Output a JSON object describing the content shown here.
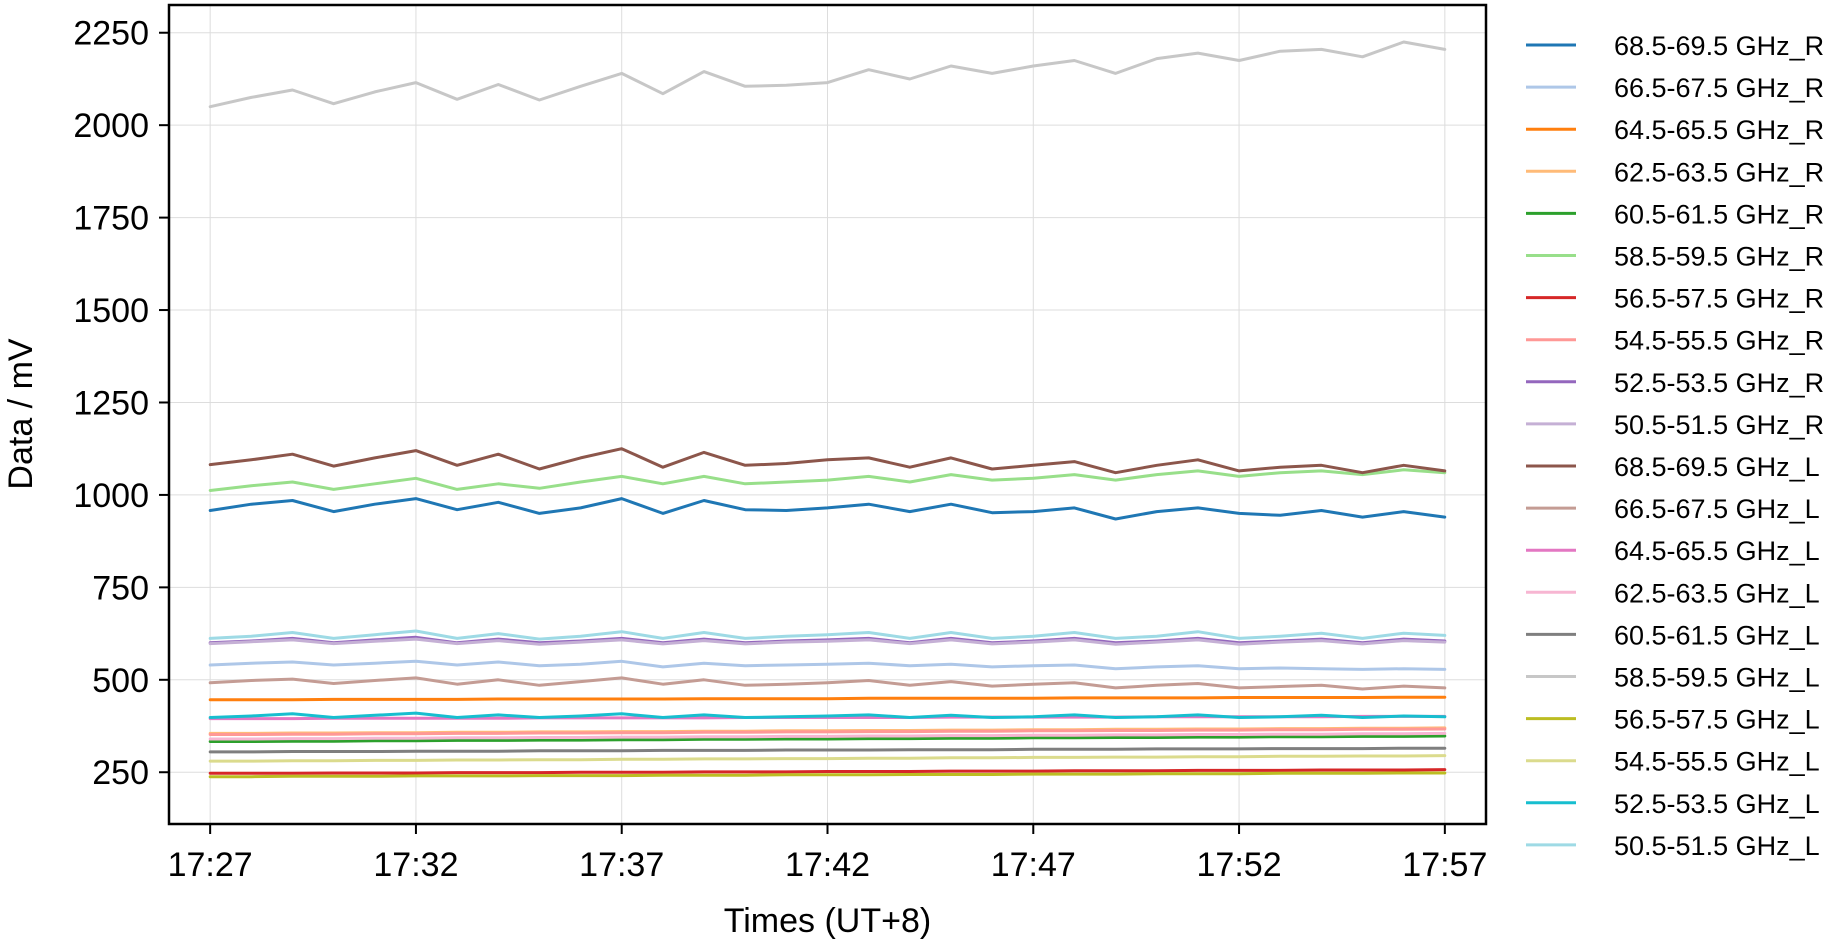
{
  "chart_data": {
    "type": "line",
    "title": "",
    "xlabel": "Times (UT+8)",
    "ylabel": "Data / mV",
    "xlim": [
      "17:26",
      "17:58"
    ],
    "ylim": [
      110,
      2325
    ],
    "x_ticks": [
      "17:27",
      "17:32",
      "17:37",
      "17:42",
      "17:47",
      "17:52",
      "17:57"
    ],
    "y_ticks": [
      250,
      500,
      750,
      1000,
      1250,
      1500,
      1750,
      2000,
      2250
    ],
    "grid": true,
    "legend_position": "outside-right",
    "x": [
      "17:27",
      "17:28",
      "17:29",
      "17:30",
      "17:31",
      "17:32",
      "17:33",
      "17:34",
      "17:35",
      "17:36",
      "17:37",
      "17:38",
      "17:39",
      "17:40",
      "17:41",
      "17:42",
      "17:43",
      "17:44",
      "17:45",
      "17:46",
      "17:47",
      "17:48",
      "17:49",
      "17:50",
      "17:51",
      "17:52",
      "17:53",
      "17:54",
      "17:55",
      "17:56",
      "17:57"
    ],
    "series": [
      {
        "name": "68.5-69.5 GHz_R",
        "color": "#1f77b4",
        "values": [
          958,
          975,
          985,
          955,
          975,
          990,
          960,
          980,
          950,
          965,
          990,
          950,
          985,
          960,
          958,
          965,
          975,
          955,
          975,
          952,
          955,
          965,
          935,
          955,
          965,
          950,
          945,
          958,
          940,
          955,
          940
        ]
      },
      {
        "name": "66.5-67.5 GHz_R",
        "color": "#aec7e8",
        "values": [
          540,
          545,
          548,
          540,
          545,
          550,
          540,
          548,
          538,
          542,
          550,
          535,
          545,
          538,
          540,
          542,
          545,
          538,
          542,
          535,
          538,
          540,
          530,
          535,
          538,
          530,
          532,
          530,
          528,
          530,
          528
        ]
      },
      {
        "name": "64.5-65.5 GHz_R",
        "color": "#ff7f0e",
        "values": [
          446,
          446,
          446,
          447,
          447,
          447,
          447,
          448,
          448,
          448,
          448,
          448,
          449,
          449,
          449,
          449,
          450,
          450,
          450,
          450,
          450,
          451,
          451,
          451,
          451,
          452,
          452,
          452,
          452,
          453,
          453
        ]
      },
      {
        "name": "62.5-63.5 GHz_R",
        "color": "#ffbb78",
        "values": [
          355,
          355,
          356,
          356,
          357,
          357,
          358,
          358,
          359,
          359,
          360,
          360,
          361,
          361,
          362,
          362,
          363,
          363,
          364,
          364,
          365,
          365,
          366,
          366,
          367,
          367,
          368,
          368,
          369,
          369,
          370
        ]
      },
      {
        "name": "60.5-61.5 GHz_R",
        "color": "#2ca02c",
        "values": [
          333,
          333,
          334,
          334,
          335,
          335,
          336,
          336,
          337,
          337,
          338,
          338,
          339,
          339,
          340,
          340,
          341,
          341,
          342,
          342,
          343,
          343,
          344,
          344,
          345,
          345,
          346,
          346,
          347,
          347,
          348
        ]
      },
      {
        "name": "58.5-59.5 GHz_R",
        "color": "#98df8a",
        "values": [
          1012,
          1025,
          1035,
          1015,
          1030,
          1045,
          1015,
          1030,
          1018,
          1035,
          1050,
          1030,
          1050,
          1030,
          1035,
          1040,
          1050,
          1035,
          1055,
          1040,
          1045,
          1055,
          1040,
          1055,
          1065,
          1050,
          1060,
          1065,
          1055,
          1068,
          1060
        ]
      },
      {
        "name": "56.5-57.5 GHz_R",
        "color": "#d62728",
        "values": [
          247,
          247,
          247,
          248,
          248,
          248,
          249,
          249,
          249,
          250,
          250,
          250,
          251,
          251,
          251,
          252,
          252,
          252,
          253,
          253,
          253,
          254,
          254,
          254,
          255,
          255,
          255,
          256,
          256,
          256,
          257
        ]
      },
      {
        "name": "54.5-55.5 GHz_R",
        "color": "#ff9896",
        "values": [
          352,
          352,
          353,
          353,
          354,
          354,
          355,
          355,
          356,
          356,
          357,
          357,
          358,
          358,
          359,
          359,
          360,
          360,
          361,
          361,
          362,
          362,
          363,
          363,
          364,
          364,
          365,
          365,
          366,
          366,
          367
        ]
      },
      {
        "name": "52.5-53.5 GHz_R",
        "color": "#9467bd",
        "values": [
          600,
          605,
          612,
          600,
          608,
          615,
          600,
          610,
          600,
          605,
          612,
          600,
          610,
          600,
          605,
          608,
          612,
          600,
          612,
          600,
          605,
          612,
          600,
          605,
          612,
          600,
          605,
          610,
          600,
          610,
          605
        ]
      },
      {
        "name": "50.5-51.5 GHz_R",
        "color": "#c5b0d5",
        "values": [
          598,
          603,
          608,
          598,
          604,
          610,
          598,
          606,
          596,
          602,
          608,
          597,
          606,
          597,
          602,
          604,
          608,
          598,
          608,
          597,
          602,
          608,
          596,
          602,
          608,
          596,
          602,
          606,
          597,
          606,
          602
        ]
      },
      {
        "name": "68.5-69.5 GHz_L",
        "color": "#8c564b",
        "values": [
          1082,
          1095,
          1110,
          1078,
          1100,
          1120,
          1080,
          1110,
          1070,
          1100,
          1125,
          1075,
          1115,
          1080,
          1085,
          1095,
          1100,
          1075,
          1100,
          1070,
          1080,
          1090,
          1060,
          1080,
          1095,
          1065,
          1075,
          1080,
          1060,
          1080,
          1065
        ]
      },
      {
        "name": "66.5-67.5 GHz_L",
        "color": "#c49c94",
        "values": [
          492,
          498,
          502,
          490,
          498,
          505,
          488,
          500,
          485,
          495,
          505,
          488,
          500,
          485,
          488,
          492,
          498,
          485,
          495,
          483,
          488,
          492,
          478,
          485,
          490,
          478,
          482,
          485,
          475,
          483,
          478
        ]
      },
      {
        "name": "64.5-65.5 GHz_L",
        "color": "#e377c2",
        "values": [
          395,
          395,
          395,
          396,
          396,
          396,
          396,
          396,
          397,
          397,
          397,
          397,
          397,
          398,
          398,
          398,
          398,
          398,
          399,
          399,
          399,
          399,
          399,
          400,
          400,
          400,
          400,
          400,
          401,
          401,
          401
        ]
      },
      {
        "name": "62.5-63.5 GHz_L",
        "color": "#f7b6d2",
        "values": [
          340,
          340,
          341,
          341,
          342,
          342,
          343,
          343,
          344,
          344,
          345,
          345,
          346,
          346,
          347,
          347,
          348,
          348,
          349,
          349,
          350,
          350,
          351,
          351,
          352,
          352,
          353,
          353,
          354,
          354,
          355
        ]
      },
      {
        "name": "60.5-61.5 GHz_L",
        "color": "#7f7f7f",
        "values": [
          305,
          305,
          306,
          306,
          306,
          307,
          307,
          307,
          308,
          308,
          308,
          309,
          309,
          309,
          310,
          310,
          310,
          311,
          311,
          311,
          312,
          312,
          312,
          313,
          313,
          313,
          314,
          314,
          314,
          315,
          315
        ]
      },
      {
        "name": "58.5-59.5 GHz_L",
        "color": "#c7c7c7",
        "values": [
          2050,
          2075,
          2095,
          2058,
          2090,
          2115,
          2070,
          2110,
          2068,
          2105,
          2140,
          2085,
          2145,
          2105,
          2108,
          2115,
          2150,
          2125,
          2160,
          2140,
          2160,
          2175,
          2140,
          2180,
          2195,
          2175,
          2200,
          2205,
          2185,
          2225,
          2205
        ]
      },
      {
        "name": "56.5-57.5 GHz_L",
        "color": "#bcbd22",
        "values": [
          238,
          238,
          239,
          239,
          239,
          240,
          240,
          240,
          241,
          241,
          241,
          242,
          242,
          242,
          243,
          243,
          243,
          244,
          244,
          244,
          245,
          245,
          245,
          246,
          246,
          246,
          247,
          247,
          247,
          248,
          248
        ]
      },
      {
        "name": "54.5-55.5 GHz_L",
        "color": "#dbdb8d",
        "values": [
          280,
          280,
          281,
          281,
          282,
          282,
          283,
          283,
          284,
          284,
          285,
          285,
          286,
          286,
          287,
          287,
          288,
          288,
          289,
          289,
          290,
          290,
          291,
          291,
          292,
          292,
          293,
          293,
          294,
          294,
          295
        ]
      },
      {
        "name": "52.5-53.5 GHz_L",
        "color": "#17becf",
        "values": [
          398,
          402,
          408,
          398,
          404,
          410,
          398,
          405,
          398,
          402,
          408,
          398,
          405,
          398,
          400,
          402,
          405,
          398,
          404,
          398,
          400,
          405,
          398,
          400,
          405,
          398,
          400,
          404,
          398,
          402,
          400
        ]
      },
      {
        "name": "50.5-51.5 GHz_L",
        "color": "#9edae5",
        "values": [
          612,
          618,
          628,
          612,
          622,
          632,
          612,
          625,
          610,
          618,
          630,
          612,
          628,
          612,
          618,
          622,
          628,
          612,
          628,
          612,
          618,
          628,
          612,
          618,
          630,
          612,
          618,
          626,
          612,
          626,
          620
        ]
      }
    ]
  }
}
